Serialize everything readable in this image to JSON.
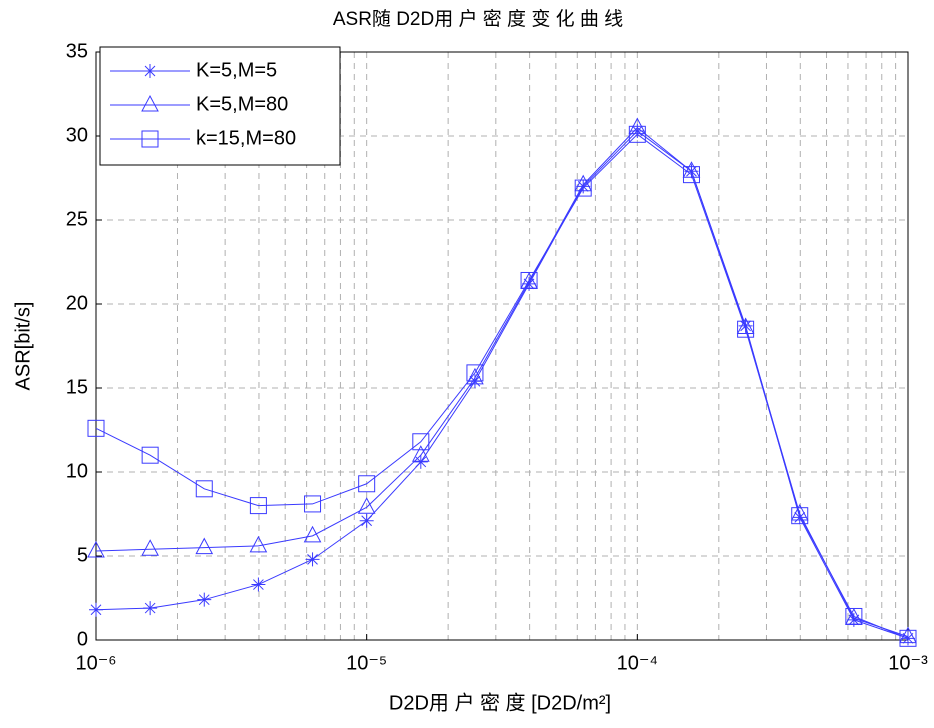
{
  "chart_data": {
    "type": "line",
    "title": "ASR随 D2D用 户 密 度 变 化 曲 线",
    "xlabel": "D2D用 户 密 度 [D2D/m²]",
    "ylabel": "ASR[bit/s]",
    "xscale": "log",
    "x": [
      1e-06,
      1.585e-06,
      2.512e-06,
      3.981e-06,
      6.31e-06,
      1e-05,
      1.585e-05,
      2.512e-05,
      3.981e-05,
      6.31e-05,
      0.0001,
      0.0001585,
      0.0002512,
      0.0003981,
      0.000631,
      0.001
    ],
    "series": [
      {
        "name": "K=5,M=5",
        "color": "#3a3aff",
        "marker": "star",
        "values": [
          1.8,
          1.9,
          2.4,
          3.3,
          4.8,
          7.1,
          10.6,
          15.4,
          21.2,
          27.0,
          30.3,
          27.9,
          18.7,
          7.3,
          1.2,
          0.1
        ]
      },
      {
        "name": "K=5,M=80",
        "color": "#3a3aff",
        "marker": "triangle",
        "values": [
          5.3,
          5.4,
          5.5,
          5.6,
          6.2,
          7.9,
          11.0,
          15.6,
          21.3,
          27.1,
          30.5,
          27.9,
          18.6,
          7.5,
          1.3,
          0.2
        ]
      },
      {
        "name": "k=15,M=80",
        "color": "#3a3aff",
        "marker": "square",
        "values": [
          12.6,
          11.0,
          9.0,
          8.0,
          8.1,
          9.3,
          11.8,
          15.9,
          21.4,
          26.9,
          30.1,
          27.7,
          18.5,
          7.4,
          1.4,
          0.1
        ]
      }
    ],
    "xlim": [
      1e-06,
      0.001
    ],
    "xticks": [
      {
        "value": 1e-06,
        "label": "10⁻⁶"
      },
      {
        "value": 1e-05,
        "label": "10⁻⁵"
      },
      {
        "value": 0.0001,
        "label": "10⁻⁴"
      },
      {
        "value": 0.001,
        "label": "10⁻³"
      }
    ],
    "xminorticks": [
      2e-06,
      3e-06,
      4e-06,
      5e-06,
      6e-06,
      7e-06,
      8e-06,
      9e-06,
      2e-05,
      3e-05,
      4e-05,
      5e-05,
      6e-05,
      7e-05,
      8e-05,
      9e-05,
      0.0002,
      0.0003,
      0.0004,
      0.0005,
      0.0006,
      0.0007,
      0.0008,
      0.0009
    ],
    "ylim": [
      0,
      35
    ],
    "yticks": [
      0,
      5,
      10,
      15,
      20,
      25,
      30,
      35
    ],
    "grid": true,
    "legend": "upper-left"
  }
}
